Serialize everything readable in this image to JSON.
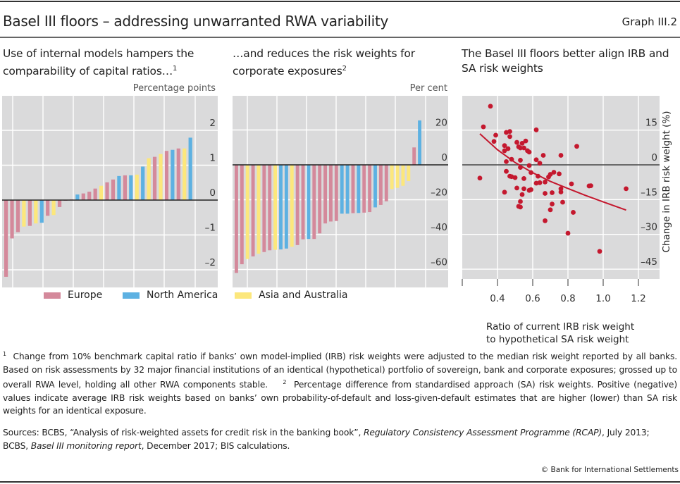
{
  "header": {
    "title": "Basel III floors – addressing unwarranted RWA variability",
    "graph_id": "Graph III.2"
  },
  "colors": {
    "europe": "#d4899b",
    "north_america": "#5db1e2",
    "asia_australia": "#fce77c",
    "scatter": "#c4182e",
    "plot_bg": "#dadadb",
    "grid": "#ffffff"
  },
  "legend": [
    {
      "label": "Europe",
      "color": "#d4899b"
    },
    {
      "label": "North America",
      "color": "#5db1e2"
    },
    {
      "label": "Asia and Australia",
      "color": "#fce77c"
    }
  ],
  "chart_data": [
    {
      "type": "bar",
      "title": "Use of internal models hampers the comparability of capital ratios…",
      "title_footnote": "1",
      "unit_label": "Percentage points",
      "ylim": [
        -2.5,
        2.6
      ],
      "yticks": [
        -2,
        -1,
        0,
        1,
        2
      ],
      "ytick_labels": [
        "–2",
        "–1",
        "0",
        "1",
        "2"
      ],
      "grid": true,
      "series_regions": [
        "E",
        "E",
        "E",
        "A",
        "E",
        "A",
        "N",
        "E",
        "A",
        "E",
        "E",
        "E",
        "N",
        "E",
        "E",
        "E",
        "A",
        "E",
        "E",
        "N",
        "E",
        "N",
        "A",
        "N",
        "A",
        "E",
        "A",
        "E",
        "N",
        "E",
        "A",
        "N"
      ],
      "values": [
        -2.2,
        -1.1,
        -0.92,
        -0.76,
        -0.74,
        -0.67,
        -0.65,
        -0.45,
        -0.43,
        -0.2,
        -0.02,
        0.02,
        0.16,
        0.19,
        0.24,
        0.33,
        0.41,
        0.51,
        0.59,
        0.69,
        0.71,
        0.71,
        0.73,
        0.96,
        1.2,
        1.24,
        1.32,
        1.41,
        1.44,
        1.48,
        1.48,
        1.79
      ]
    },
    {
      "type": "bar",
      "title": "…and reduces the risk weights for corporate exposures",
      "title_footnote": "2",
      "unit_label": "Per cent",
      "ylim": [
        -70,
        30
      ],
      "yticks": [
        -60,
        -40,
        -20,
        0,
        20
      ],
      "ytick_labels": [
        "–60",
        "–40",
        "–20",
        "0",
        "20"
      ],
      "grid": true,
      "series_regions": [
        "E",
        "E",
        "A",
        "E",
        "A",
        "E",
        "E",
        "A",
        "N",
        "N",
        "A",
        "E",
        "E",
        "N",
        "E",
        "E",
        "E",
        "E",
        "E",
        "N",
        "N",
        "E",
        "N",
        "E",
        "E",
        "N",
        "E",
        "E",
        "A",
        "A",
        "A",
        "A",
        "E",
        "N"
      ],
      "values": [
        -62,
        -57,
        -54,
        -52.5,
        -51,
        -50,
        -49,
        -48.7,
        -48.5,
        -48,
        -47,
        -46,
        -42.7,
        -42.5,
        -42.5,
        -39.3,
        -33.6,
        -32.5,
        -32.2,
        -28,
        -28,
        -27.7,
        -27.6,
        -27.4,
        -27.1,
        -24.4,
        -23,
        -20.9,
        -13.9,
        -13.2,
        -12,
        -9.3,
        10,
        25.5
      ]
    },
    {
      "type": "scatter",
      "title": "The Basel III floors better align IRB and SA risk weights",
      "xlabel": "Ratio of current IRB risk weight to hypothetical SA risk weight",
      "ylabel": "Change in IRB risk weight (%)",
      "xlim": [
        0.2,
        1.3
      ],
      "ylim": [
        -52,
        33
      ],
      "xticks": [
        0.4,
        0.6,
        0.8,
        1.0,
        1.2
      ],
      "xtick_labels": [
        "0.4",
        "0.6",
        "0.8",
        "1.0",
        "1.2"
      ],
      "yticks": [
        -45,
        -30,
        -15,
        0,
        15
      ],
      "ytick_labels": [
        "–45",
        "–30",
        "–15",
        "0",
        "15"
      ],
      "grid": true,
      "points": [
        [
          0.36,
          25.3
        ],
        [
          0.32,
          16.4
        ],
        [
          0.3,
          -5.7
        ],
        [
          0.39,
          12.8
        ],
        [
          0.38,
          10.1
        ],
        [
          0.45,
          14
        ],
        [
          0.47,
          14.4
        ],
        [
          0.47,
          12.2
        ],
        [
          0.44,
          8.3
        ],
        [
          0.46,
          7
        ],
        [
          0.44,
          6.1
        ],
        [
          0.51,
          9.7
        ],
        [
          0.56,
          10.3
        ],
        [
          0.54,
          9.3
        ],
        [
          0.52,
          7.8
        ],
        [
          0.53,
          7.3
        ],
        [
          0.55,
          7.3
        ],
        [
          0.57,
          6.1
        ],
        [
          0.58,
          5.5
        ],
        [
          0.62,
          15.1
        ],
        [
          0.66,
          4.1
        ],
        [
          0.76,
          4.1
        ],
        [
          0.85,
          8
        ],
        [
          0.45,
          1.4
        ],
        [
          0.48,
          2.4
        ],
        [
          0.53,
          2
        ],
        [
          0.62,
          2.2
        ],
        [
          0.64,
          0.7
        ],
        [
          0.58,
          -0.3
        ],
        [
          0.53,
          -1.1
        ],
        [
          0.59,
          -3.3
        ],
        [
          0.45,
          -2.8
        ],
        [
          0.47,
          -4.9
        ],
        [
          0.48,
          -5.1
        ],
        [
          0.5,
          -5.5
        ],
        [
          0.55,
          -5.9
        ],
        [
          0.63,
          -4.9
        ],
        [
          0.69,
          -5.2
        ],
        [
          0.7,
          -4.1
        ],
        [
          0.72,
          -3.2
        ],
        [
          0.75,
          -3.9
        ],
        [
          0.62,
          -7.9
        ],
        [
          0.64,
          -7.7
        ],
        [
          0.67,
          -7.4
        ],
        [
          0.51,
          -10
        ],
        [
          0.55,
          -10.3
        ],
        [
          0.58,
          -11
        ],
        [
          0.59,
          -10.7
        ],
        [
          0.44,
          -11.8
        ],
        [
          0.67,
          -12.3
        ],
        [
          0.71,
          -12
        ],
        [
          0.76,
          -10.3
        ],
        [
          0.76,
          -11.7
        ],
        [
          0.82,
          -8.2
        ],
        [
          0.54,
          -12.8
        ],
        [
          0.53,
          -15.8
        ],
        [
          0.52,
          -17.9
        ],
        [
          0.53,
          -18.2
        ],
        [
          0.71,
          -16.9
        ],
        [
          0.77,
          -16.1
        ],
        [
          0.7,
          -19.4
        ],
        [
          0.83,
          -20.5
        ],
        [
          0.67,
          -24.1
        ],
        [
          0.8,
          -29.5
        ],
        [
          0.98,
          -37.3
        ],
        [
          0.92,
          -9.1
        ],
        [
          0.93,
          -9
        ],
        [
          1.13,
          -10.3
        ]
      ],
      "fit_curve": [
        [
          0.3,
          13.4
        ],
        [
          0.4,
          6.5
        ],
        [
          0.5,
          1.0
        ],
        [
          0.6,
          -3.4
        ],
        [
          0.7,
          -7.1
        ],
        [
          0.8,
          -10.2
        ],
        [
          0.9,
          -13.2
        ],
        [
          1.0,
          -16.0
        ],
        [
          1.13,
          -19.5
        ]
      ]
    }
  ],
  "footnotes": {
    "fn1_marker": "1",
    "fn1": "Change from 10% benchmark capital ratio if banks’ own model-implied (IRB) risk weights were adjusted to the median risk weight reported by all banks. Based on risk assessments by 32 major financial institutions of an identical (hypothetical) portfolio of sovereign, bank and corporate exposures; grossed up to overall RWA level, holding all other RWA components stable.",
    "fn2_marker": "2",
    "fn2": "Percentage difference from standardised approach (SA) risk weights. Positive (negative) values indicate average IRB risk weights based on banks’ own probability-of-default and loss-given-default estimates that are higher (lower) than SA risk weights for an identical exposure."
  },
  "sources": {
    "prefix": "Sources: BCBS, “Analysis of risk-weighted assets for credit risk in the banking book”, ",
    "italic1": "Regulatory Consistency Assessment Programme (RCAP)",
    "mid": ", July 2013; BCBS, ",
    "italic2": "Basel III monitoring report",
    "suffix": ", December 2017; BIS calculations."
  },
  "copyright": "© Bank for International Settlements"
}
